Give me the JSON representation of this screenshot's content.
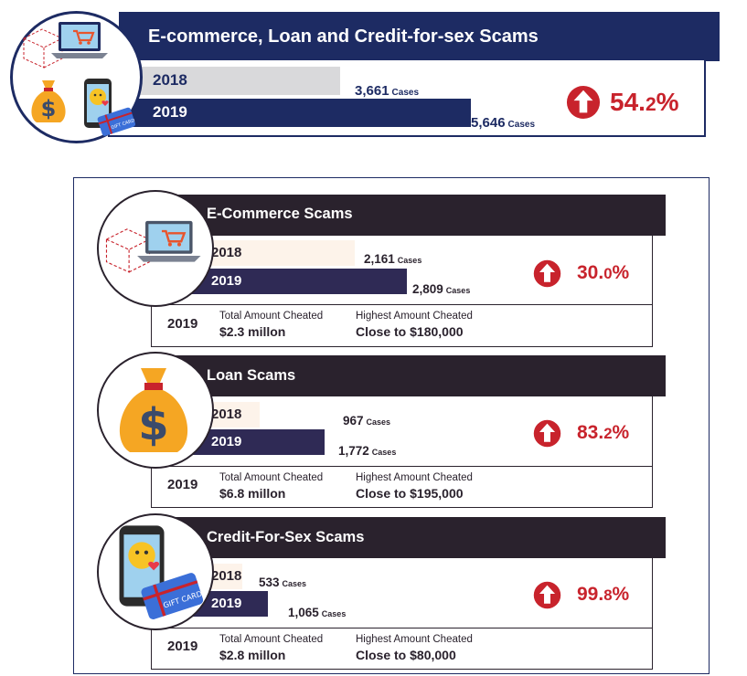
{
  "colors": {
    "navy": "#1d2b63",
    "dark": "#2a222d",
    "bar2019": "#2f2a55",
    "bar2018_top": "#d9d9db",
    "bar2018": "#fdf3ea",
    "red": "#c8232c"
  },
  "chart_data": [
    {
      "type": "bar",
      "title": "E-commerce, Loan and Credit-for-sex Scams",
      "categories": [
        "2018",
        "2019"
      ],
      "values": [
        3661,
        5646
      ],
      "value_labels": [
        "3,661",
        "5,646"
      ],
      "unit": "Cases",
      "change": {
        "main": "54.",
        "small": "2",
        "suffix": "%"
      }
    },
    {
      "type": "bar",
      "title": "E-Commerce Scams",
      "categories": [
        "2018",
        "2019"
      ],
      "values": [
        2161,
        2809
      ],
      "value_labels": [
        "2,161",
        "2,809"
      ],
      "unit": "Cases",
      "change": {
        "main": "30.",
        "small": "0",
        "suffix": "%"
      },
      "info": {
        "year": "2019",
        "total_label": "Total Amount Cheated",
        "total_value": "$2.3 millon",
        "highest_label": "Highest Amount Cheated",
        "highest_value": "Close to $180,000"
      }
    },
    {
      "type": "bar",
      "title": "Loan Scams",
      "categories": [
        "2018",
        "2019"
      ],
      "values": [
        967,
        1772
      ],
      "value_labels": [
        "967",
        "1,772"
      ],
      "unit": "Cases",
      "change": {
        "main": "83.",
        "small": "2",
        "suffix": "%"
      },
      "info": {
        "year": "2019",
        "total_label": "Total Amount Cheated",
        "total_value": "$6.8 millon",
        "highest_label": "Highest Amount Cheated",
        "highest_value": "Close to $195,000"
      }
    },
    {
      "type": "bar",
      "title": "Credit-For-Sex Scams",
      "categories": [
        "2018",
        "2019"
      ],
      "values": [
        533,
        1065
      ],
      "value_labels": [
        "533",
        "1,065"
      ],
      "unit": "Cases",
      "change": {
        "main": "99.",
        "small": "8",
        "suffix": "%"
      },
      "info": {
        "year": "2019",
        "total_label": "Total Amount Cheated",
        "total_value": "$2.8 millon",
        "highest_label": "Highest Amount Cheated",
        "highest_value": "Close to $80,000"
      }
    }
  ],
  "icons": {
    "top": [
      "laptop-cart-icon",
      "money-bag-icon",
      "phone-emoji-icon",
      "gift-card-icon"
    ],
    "ecommerce": "laptop-cart-icon",
    "loan": "money-bag-icon",
    "credit": "phone-gift-card-icon",
    "increase": "up-arrow-icon"
  },
  "gift_card_text": "GIFT CARD"
}
